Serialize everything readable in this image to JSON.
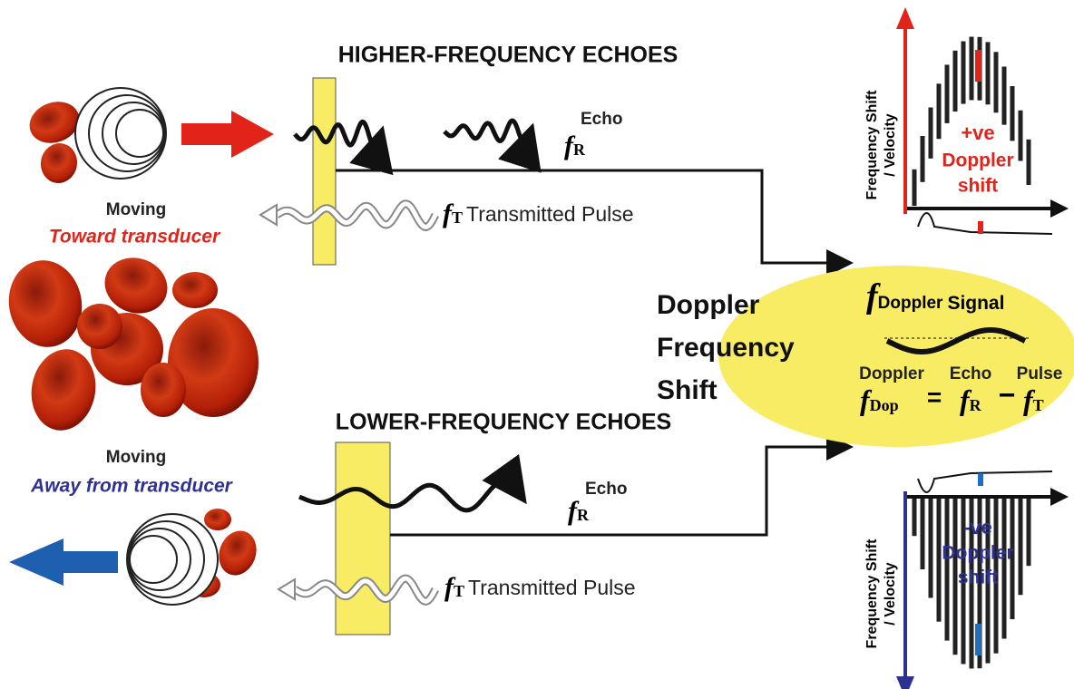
{
  "top": {
    "title": "HIGHER-FREQUENCY ECHOES",
    "moving": "Moving",
    "direction": "Toward transducer",
    "echo": {
      "label": "Echo",
      "symbol": "f",
      "subscript": "R"
    },
    "pulse": {
      "symbol": "f",
      "subscript": "T",
      "label": "Transmitted Pulse"
    }
  },
  "bottom": {
    "title": "LOWER-FREQUENCY ECHOES",
    "moving": "Moving",
    "direction": "Away from transducer",
    "echo": {
      "label": "Echo",
      "symbol": "f",
      "subscript": "R"
    },
    "pulse": {
      "symbol": "f",
      "subscript": "T",
      "label": "Transmitted Pulse"
    }
  },
  "center": {
    "title": [
      "Doppler",
      "Frequency",
      "Shift"
    ],
    "signal": {
      "symbol": "f",
      "subscript": "Doppler",
      "label": "Signal"
    },
    "equation": {
      "labels": [
        "Doppler",
        "Echo",
        "Pulse"
      ],
      "terms": [
        {
          "symbol": "f",
          "subscript": "Dop"
        },
        {
          "symbol": "f",
          "subscript": "R"
        },
        {
          "symbol": "f",
          "subscript": "T"
        }
      ],
      "operators": [
        "=",
        "−"
      ]
    }
  },
  "graphs": [
    {
      "axis_label": [
        "Frequency Shift",
        "/ Velocity"
      ],
      "sign": "+ve",
      "label": [
        "Doppler",
        "shift"
      ]
    },
    {
      "axis_label": [
        "Frequency Shift",
        "/ Velocity"
      ],
      "sign": "-ve",
      "label": [
        "Doppler",
        "shift"
      ]
    }
  ]
}
